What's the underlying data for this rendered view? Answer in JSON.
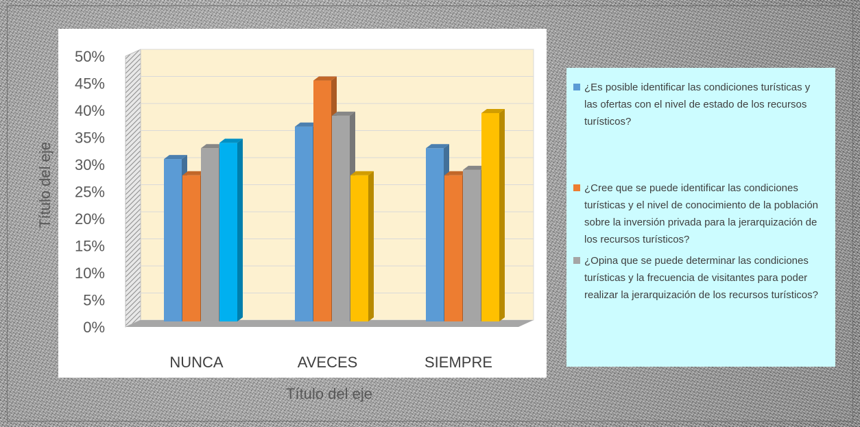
{
  "chart_data": {
    "type": "bar",
    "categories": [
      "NUNCA",
      "AVECES",
      "SIEMPRE"
    ],
    "series": [
      {
        "name": "¿Es posible identificar las condiciones turísticas y las ofertas con el nivel de estado de los recursos turísticos?",
        "values": [
          31,
          37,
          33
        ],
        "color": "#5b9bd5"
      },
      {
        "name": "¿Cree que se puede identificar las condiciones turísticas y el nivel de conocimiento de la población sobre la inversión privada para la jerarquización de los recursos turísticos?",
        "values": [
          28,
          45.5,
          28
        ],
        "color": "#ed7d31"
      },
      {
        "name": "¿Opina que se puede determinar las condiciones turísticas y la frecuencia de visitantes para poder realizar la jerarquización de los recursos turísticos?",
        "values": [
          33,
          39,
          29
        ],
        "color": "#a5a5a5"
      },
      {
        "name": "",
        "values": [
          34,
          28,
          39.5
        ],
        "color_by_category": [
          "#00b0f0",
          "#ffc000",
          "#ffc000"
        ]
      }
    ],
    "y_ticks": [
      "0%",
      "5%",
      "10%",
      "15%",
      "20%",
      "25%",
      "30%",
      "35%",
      "40%",
      "45%",
      "50%"
    ],
    "ylim": [
      0,
      50
    ],
    "xlabel": "Título del eje",
    "ylabel": "Título del eje",
    "grid": true,
    "style": "3d-clustered-column",
    "legend_position": "right"
  }
}
